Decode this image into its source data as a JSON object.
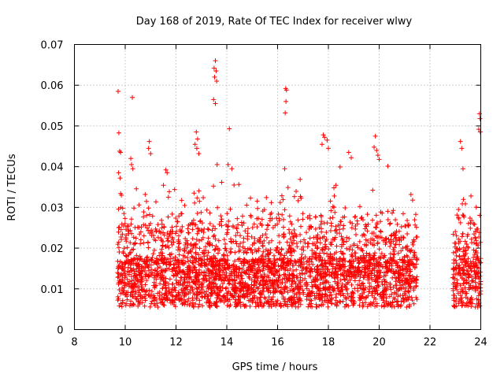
{
  "chart_data": {
    "type": "scatter",
    "title": "Day 168 of 2019, Rate Of TEC Index for receiver wlwy",
    "xlabel": "GPS time / hours",
    "ylabel": "ROTI / TECUs",
    "xlim": [
      8,
      24
    ],
    "ylim": [
      0,
      0.07
    ],
    "x_ticks": [
      8,
      10,
      12,
      14,
      16,
      18,
      20,
      22,
      24
    ],
    "x_tick_labels": [
      "8",
      "10",
      "12",
      "14",
      "16",
      "18",
      "20",
      "22",
      "24"
    ],
    "y_ticks": [
      0,
      0.01,
      0.02,
      0.03,
      0.04,
      0.05,
      0.06,
      0.07
    ],
    "y_tick_labels": [
      "0",
      "0.01",
      "0.02",
      "0.03",
      "0.04",
      "0.05",
      "0.06",
      "0.07"
    ],
    "grid": true,
    "marker": "+",
    "series": [
      {
        "name": "ROTI",
        "color": "#ff0000",
        "data_coverage_hours": [
          [
            9.7,
            21.5
          ],
          [
            22.9,
            24.0
          ]
        ],
        "points": [
          [
            9.72,
            0.0585
          ],
          [
            9.75,
            0.0483
          ],
          [
            9.78,
            0.0438
          ],
          [
            9.82,
            0.0435
          ],
          [
            9.74,
            0.0385
          ],
          [
            9.8,
            0.0372
          ],
          [
            9.85,
            0.033
          ],
          [
            9.9,
            0.0298
          ],
          [
            9.95,
            0.0285
          ],
          [
            10.28,
            0.057
          ],
          [
            10.22,
            0.042
          ],
          [
            10.25,
            0.0405
          ],
          [
            10.3,
            0.0395
          ],
          [
            10.95,
            0.0462
          ],
          [
            10.92,
            0.0445
          ],
          [
            11.0,
            0.0432
          ],
          [
            11.6,
            0.0392
          ],
          [
            11.65,
            0.0385
          ],
          [
            11.7,
            0.0325
          ],
          [
            12.8,
            0.0485
          ],
          [
            12.85,
            0.0468
          ],
          [
            12.75,
            0.0455
          ],
          [
            12.82,
            0.0445
          ],
          [
            12.9,
            0.0432
          ],
          [
            13.55,
            0.066
          ],
          [
            13.5,
            0.0642
          ],
          [
            13.58,
            0.0635
          ],
          [
            13.52,
            0.062
          ],
          [
            13.6,
            0.061
          ],
          [
            13.48,
            0.0565
          ],
          [
            13.55,
            0.0555
          ],
          [
            13.62,
            0.0405
          ],
          [
            14.1,
            0.0493
          ],
          [
            14.05,
            0.0405
          ],
          [
            14.2,
            0.0395
          ],
          [
            16.32,
            0.0592
          ],
          [
            16.35,
            0.0588
          ],
          [
            16.33,
            0.056
          ],
          [
            16.3,
            0.0532
          ],
          [
            16.28,
            0.0395
          ],
          [
            17.8,
            0.0478
          ],
          [
            17.85,
            0.0472
          ],
          [
            17.95,
            0.0465
          ],
          [
            17.75,
            0.0455
          ],
          [
            18.0,
            0.0445
          ],
          [
            18.8,
            0.0435
          ],
          [
            18.9,
            0.0422
          ],
          [
            19.85,
            0.0475
          ],
          [
            19.8,
            0.0448
          ],
          [
            19.9,
            0.044
          ],
          [
            19.95,
            0.0428
          ],
          [
            20.0,
            0.0418
          ],
          [
            23.2,
            0.0462
          ],
          [
            23.25,
            0.0445
          ],
          [
            23.3,
            0.0395
          ],
          [
            23.95,
            0.053
          ],
          [
            23.97,
            0.0518
          ],
          [
            23.92,
            0.0492
          ],
          [
            23.98,
            0.0485
          ]
        ]
      }
    ]
  }
}
